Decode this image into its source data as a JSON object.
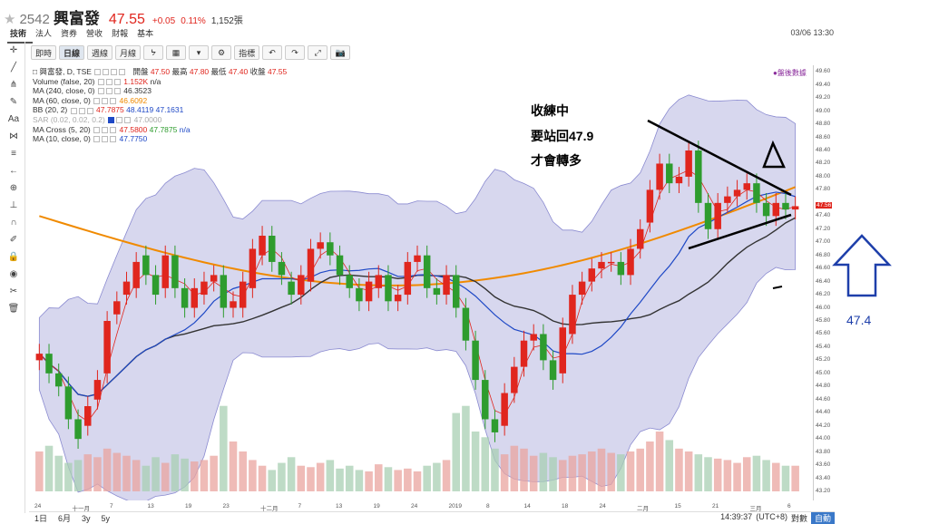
{
  "stock": {
    "star": "★",
    "code": "2542",
    "name": "興富發",
    "price": "47.55",
    "change": "+0.05",
    "percent": "0.11%",
    "volume": "1,152張"
  },
  "tabs": [
    "技術",
    "法人",
    "資券",
    "營收",
    "財報",
    "基本"
  ],
  "datetime": "03/06 13:30",
  "toolbar": {
    "buttons": [
      "即時",
      "日線",
      "週線",
      "月線",
      "ᔭ",
      "▦",
      "▾",
      "⚙",
      "指標",
      "↶",
      "↷",
      "⤢",
      "📷"
    ],
    "selected": "日線"
  },
  "legend": {
    "main": "興富發, D, TSE",
    "ohlc_label_open": "開盤",
    "open": "47.50",
    "ohlc_label_high": "最高",
    "high": "47.80",
    "ohlc_label_low": "最低",
    "low": "47.40",
    "ohlc_label_close": "收盤",
    "close": "47.55",
    "volume_label": "Volume (false, 20)",
    "volume_val": "1.152K",
    "volume_na": "n/a",
    "ma240_label": "MA (240, close, 0)",
    "ma240_val": "46.3523",
    "ma60_label": "MA (60, close, 0)",
    "ma60_val": "46.6092",
    "bb_label": "BB (20, 2)",
    "bb_v1": "47.7875",
    "bb_v2": "48.4119",
    "bb_v3": "47.1631",
    "sar_label": "SAR (0.02, 0.02, 0.2)",
    "sar_val": "47.0000",
    "macross_label": "MA Cross (5, 20)",
    "macross_v1": "47.5800",
    "macross_v2": "47.7875",
    "macross_na": "n/a",
    "ma10_label": "MA (10, close, 0)",
    "ma10_val": "47.7750"
  },
  "after_hours": "●盤後數據",
  "annotations": {
    "line1": "收練中",
    "line2": "要站回47.9",
    "line3": "才會轉多",
    "triangle": "△",
    "target": "47.4"
  },
  "y_ticks": [
    "49.60",
    "49.40",
    "49.20",
    "49.00",
    "48.80",
    "48.60",
    "48.40",
    "48.20",
    "48.00",
    "47.80",
    "47.56",
    "47.40",
    "47.20",
    "47.00",
    "46.80",
    "46.60",
    "46.40",
    "46.20",
    "46.00",
    "45.80",
    "45.60",
    "45.40",
    "45.20",
    "45.00",
    "44.80",
    "44.60",
    "44.40",
    "44.20",
    "44.00",
    "43.80",
    "43.60",
    "43.40",
    "43.20"
  ],
  "x_labels": [
    "24",
    "十一月",
    "7",
    "13",
    "19",
    "23",
    "十二月",
    "7",
    "13",
    "19",
    "24",
    "2019",
    "8",
    "14",
    "18",
    "24",
    "二月",
    "15",
    "21",
    "三月",
    "6"
  ],
  "bottom": {
    "ranges": [
      "1日",
      "6月",
      "3y",
      "5y"
    ],
    "clock": "14:39:37",
    "tz": "(UTC+8)",
    "log": "對數",
    "auto": "自動"
  },
  "colors": {
    "up": "#e0261e",
    "down": "#2e9c2e",
    "bb_fill": "#c9c9e8",
    "ma240": "#f08a00",
    "ma60": "#333333",
    "ma20": "#1f49c6",
    "ma5": "#e0261e"
  },
  "chart_data": {
    "type": "candlestick",
    "ylim": [
      43.2,
      49.7
    ],
    "closes": [
      45.3,
      45.0,
      44.8,
      44.3,
      44.0,
      44.5,
      44.9,
      45.8,
      46.1,
      46.4,
      46.7,
      46.5,
      46.2,
      46.8,
      46.3,
      46.0,
      46.3,
      46.4,
      46.5,
      46.0,
      46.1,
      46.4,
      46.9,
      47.1,
      46.7,
      46.5,
      46.2,
      46.5,
      46.9,
      47.0,
      46.8,
      46.5,
      46.3,
      46.1,
      46.4,
      46.5,
      46.1,
      46.2,
      46.7,
      46.8,
      46.3,
      46.2,
      46.5,
      46.0,
      45.5,
      44.9,
      44.3,
      44.1,
      44.7,
      45.1,
      45.5,
      45.6,
      45.2,
      44.9,
      45.7,
      46.2,
      46.4,
      46.6,
      46.7,
      46.7,
      46.5,
      46.9,
      47.2,
      47.8,
      48.2,
      47.9,
      48.0,
      48.4,
      47.6,
      47.2,
      47.6,
      47.7,
      47.8,
      47.9,
      47.6,
      47.4,
      47.6,
      47.5,
      47.55
    ],
    "opens": [
      45.2,
      45.3,
      45.0,
      44.8,
      44.3,
      44.2,
      44.6,
      45.0,
      45.9,
      46.2,
      46.3,
      46.8,
      46.5,
      46.3,
      46.8,
      46.3,
      46.0,
      46.2,
      46.4,
      46.5,
      46.0,
      46.0,
      46.3,
      46.8,
      47.1,
      46.7,
      46.4,
      46.2,
      46.4,
      46.9,
      47.0,
      46.8,
      46.5,
      46.3,
      46.1,
      46.3,
      46.5,
      46.1,
      46.2,
      46.7,
      46.8,
      46.3,
      46.2,
      46.5,
      46.0,
      45.5,
      44.9,
      44.3,
      44.2,
      44.7,
      45.1,
      45.5,
      45.6,
      45.2,
      45.0,
      45.6,
      46.2,
      46.4,
      46.6,
      46.7,
      46.7,
      46.5,
      46.9,
      47.3,
      47.8,
      48.2,
      47.9,
      48.0,
      48.4,
      47.6,
      47.2,
      47.6,
      47.7,
      47.8,
      47.9,
      47.6,
      47.4,
      47.6,
      47.5
    ],
    "volumes": [
      28,
      32,
      25,
      20,
      22,
      26,
      24,
      30,
      27,
      25,
      22,
      18,
      24,
      20,
      26,
      23,
      21,
      22,
      25,
      60,
      35,
      28,
      22,
      18,
      15,
      20,
      24,
      18,
      17,
      20,
      22,
      16,
      18,
      15,
      14,
      19,
      17,
      15,
      16,
      14,
      18,
      20,
      22,
      55,
      60,
      42,
      38,
      30,
      26,
      32,
      30,
      25,
      27,
      24,
      22,
      25,
      26,
      28,
      30,
      27,
      26,
      28,
      30,
      35,
      42,
      36,
      30,
      28,
      26,
      24,
      23,
      22,
      20,
      24,
      25,
      22,
      20,
      18,
      18
    ]
  }
}
